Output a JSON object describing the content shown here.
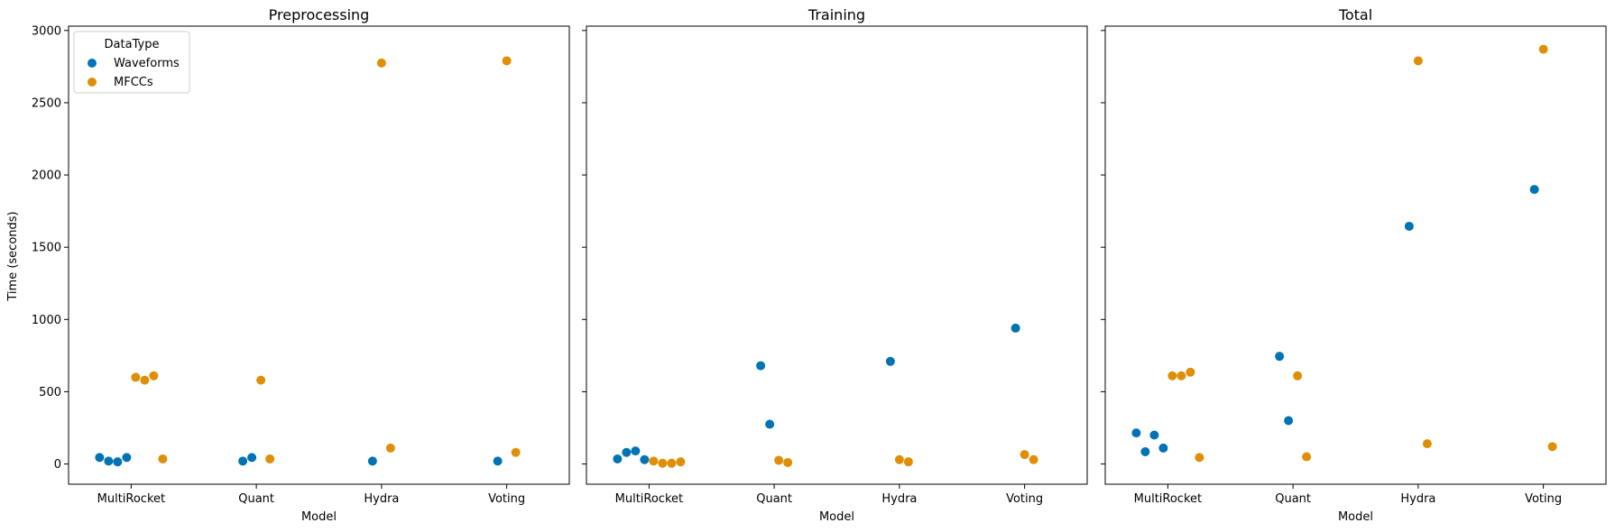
{
  "chart_data": {
    "type": "scatter",
    "categories": [
      "MultiRocket",
      "Quant",
      "Hydra",
      "Voting"
    ],
    "ylabel": "Time (seconds)",
    "xlabel": "Model",
    "ylim": [
      -140,
      3030
    ],
    "yticks": [
      0,
      500,
      1000,
      1500,
      2000,
      2500,
      3000
    ],
    "legend": {
      "title": "DataType",
      "placement": "top-left",
      "entries": [
        {
          "name": "Waveforms",
          "color": "#0173b2"
        },
        {
          "name": "MFCCs",
          "color": "#de8f05"
        }
      ]
    },
    "panels": [
      {
        "title": "Preprocessing",
        "series": [
          {
            "name": "Waveforms",
            "color": "#0173b2",
            "points": [
              {
                "category": "MultiRocket",
                "values": [
                  45,
                  20,
                  15,
                  45
                ]
              },
              {
                "category": "Quant",
                "values": [
                  20,
                  45
                ]
              },
              {
                "category": "Hydra",
                "values": [
                  20
                ]
              },
              {
                "category": "Voting",
                "values": [
                  20
                ]
              }
            ]
          },
          {
            "name": "MFCCs",
            "color": "#de8f05",
            "points": [
              {
                "category": "MultiRocket",
                "values": [
                  600,
                  580,
                  610,
                  35
                ]
              },
              {
                "category": "Quant",
                "values": [
                  580,
                  35
                ]
              },
              {
                "category": "Hydra",
                "values": [
                  2775,
                  110
                ]
              },
              {
                "category": "Voting",
                "values": [
                  2790,
                  80
                ]
              }
            ]
          }
        ]
      },
      {
        "title": "Training",
        "series": [
          {
            "name": "Waveforms",
            "color": "#0173b2",
            "points": [
              {
                "category": "MultiRocket",
                "values": [
                  35,
                  80,
                  90,
                  30
                ]
              },
              {
                "category": "Quant",
                "values": [
                  680,
                  275
                ]
              },
              {
                "category": "Hydra",
                "values": [
                  710
                ]
              },
              {
                "category": "Voting",
                "values": [
                  940
                ]
              }
            ]
          },
          {
            "name": "MFCCs",
            "color": "#de8f05",
            "points": [
              {
                "category": "MultiRocket",
                "values": [
                  20,
                  5,
                  5,
                  15
                ]
              },
              {
                "category": "Quant",
                "values": [
                  25,
                  10
                ]
              },
              {
                "category": "Hydra",
                "values": [
                  30,
                  15
                ]
              },
              {
                "category": "Voting",
                "values": [
                  65,
                  30
                ]
              }
            ]
          }
        ]
      },
      {
        "title": "Total",
        "series": [
          {
            "name": "Waveforms",
            "color": "#0173b2",
            "points": [
              {
                "category": "MultiRocket",
                "values": [
                  215,
                  85,
                  200,
                  110
                ]
              },
              {
                "category": "Quant",
                "values": [
                  745,
                  300
                ]
              },
              {
                "category": "Hydra",
                "values": [
                  1645
                ]
              },
              {
                "category": "Voting",
                "values": [
                  1900
                ]
              }
            ]
          },
          {
            "name": "MFCCs",
            "color": "#de8f05",
            "points": [
              {
                "category": "MultiRocket",
                "values": [
                  610,
                  610,
                  635,
                  45
                ]
              },
              {
                "category": "Quant",
                "values": [
                  610,
                  50
                ]
              },
              {
                "category": "Hydra",
                "values": [
                  2790,
                  140
                ]
              },
              {
                "category": "Voting",
                "values": [
                  2870,
                  120
                ]
              }
            ]
          }
        ]
      }
    ]
  }
}
